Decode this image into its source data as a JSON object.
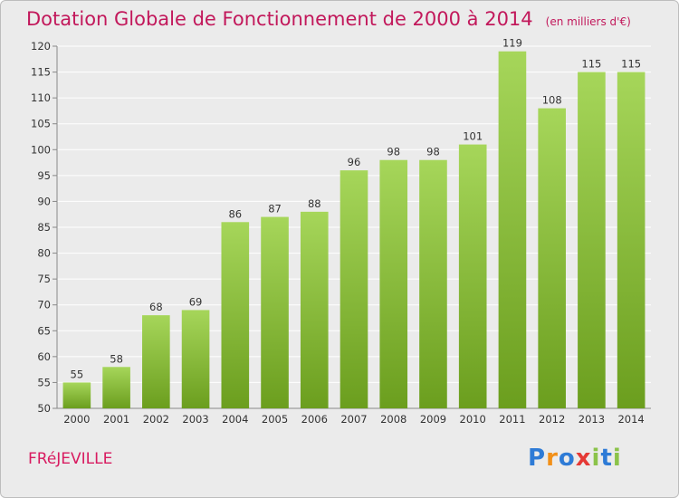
{
  "title": "Dotation Globale de Fonctionnement de 2000 à 2014",
  "subtitle": "(en milliers d'€)",
  "commune": "FRéJEVILLE",
  "logo": {
    "letters": [
      "P",
      "r",
      "o",
      "x",
      "i",
      "t",
      "i"
    ],
    "colors": [
      "#2e7bd6",
      "#f29018",
      "#2e7bd6",
      "#e53935",
      "#8bc34a",
      "#2e7bd6",
      "#8bc34a"
    ]
  },
  "colors": {
    "bar_light": "#a6d65a",
    "bar_dark": "#6b9e1e",
    "title": "#c2185b",
    "grid": "#ffffff",
    "background": "#ebebeb"
  },
  "chart_data": {
    "type": "bar",
    "title": "Dotation Globale de Fonctionnement de 2000 à 2014",
    "subtitle": "(en milliers d'€)",
    "categories": [
      "2000",
      "2001",
      "2002",
      "2003",
      "2004",
      "2005",
      "2006",
      "2007",
      "2008",
      "2009",
      "2010",
      "2011",
      "2012",
      "2013",
      "2014"
    ],
    "values": [
      55,
      58,
      68,
      69,
      86,
      87,
      88,
      96,
      98,
      98,
      101,
      119,
      108,
      115,
      115
    ],
    "ylim": [
      50,
      120
    ],
    "yticks": [
      50,
      55,
      60,
      65,
      70,
      75,
      80,
      85,
      90,
      95,
      100,
      105,
      110,
      115,
      120
    ],
    "xlabel": "",
    "ylabel": "",
    "grid": true
  }
}
